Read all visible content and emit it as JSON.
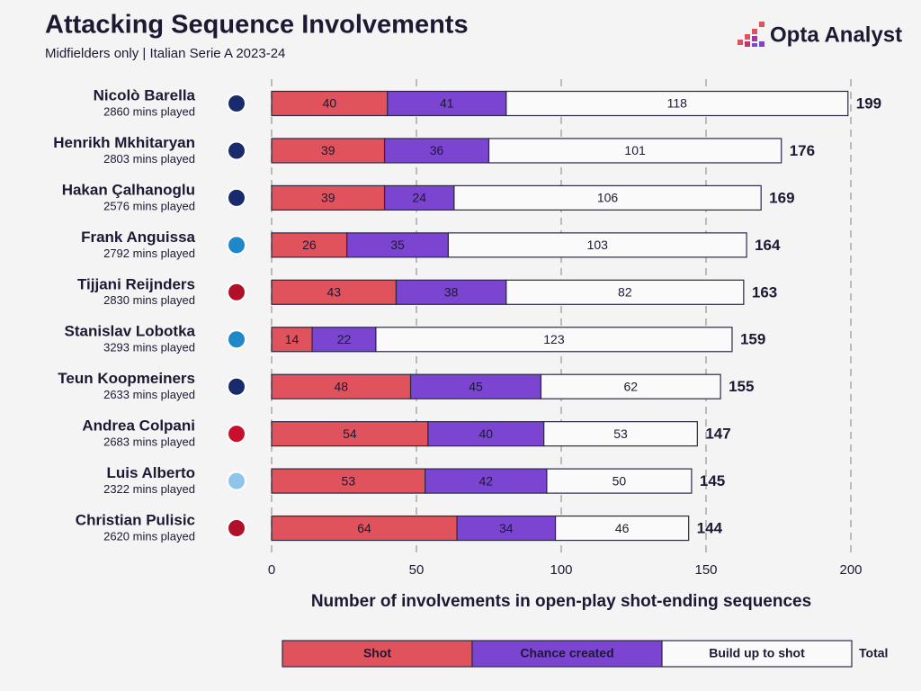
{
  "chart_data": {
    "type": "stacked_barh",
    "title": "Attacking Sequence Involvements",
    "subtitle": "Midfielders only | Italian Serie A 2023-24",
    "brand": "Opta Analyst",
    "x_label": "Number of involvements in open-play shot-ending sequences",
    "total_label": "Total",
    "categories": [
      "Nicolò Barella",
      "Henrikh Mkhitaryan",
      "Hakan Çalhanoglu",
      "Frank Anguissa",
      "Tijjani Reijnders",
      "Stanislav Lobotka",
      "Teun Koopmeiners",
      "Andrea Colpani",
      "Luis Alberto",
      "Christian Pulisic"
    ],
    "category_subtitles": [
      "2860 mins played",
      "2803 mins played",
      "2576 mins played",
      "2792 mins played",
      "2830 mins played",
      "3293 mins played",
      "2633 mins played",
      "2683 mins played",
      "2322 mins played",
      "2620 mins played"
    ],
    "series": [
      {
        "name": "Shot",
        "color": "#e0525c",
        "values": [
          40,
          39,
          39,
          26,
          43,
          14,
          48,
          54,
          53,
          64
        ]
      },
      {
        "name": "Chance created",
        "color": "#7b44d1",
        "values": [
          41,
          36,
          24,
          35,
          38,
          22,
          45,
          40,
          42,
          34
        ]
      },
      {
        "name": "Build up to shot",
        "color": "#fafafa",
        "values": [
          118,
          101,
          106,
          103,
          82,
          123,
          62,
          53,
          50,
          46
        ]
      }
    ],
    "totals": [
      199,
      176,
      169,
      164,
      163,
      159,
      155,
      147,
      145,
      144
    ],
    "xlim": [
      0,
      200
    ],
    "xticks": [
      0,
      50,
      100,
      150,
      200
    ],
    "grid": true
  }
}
